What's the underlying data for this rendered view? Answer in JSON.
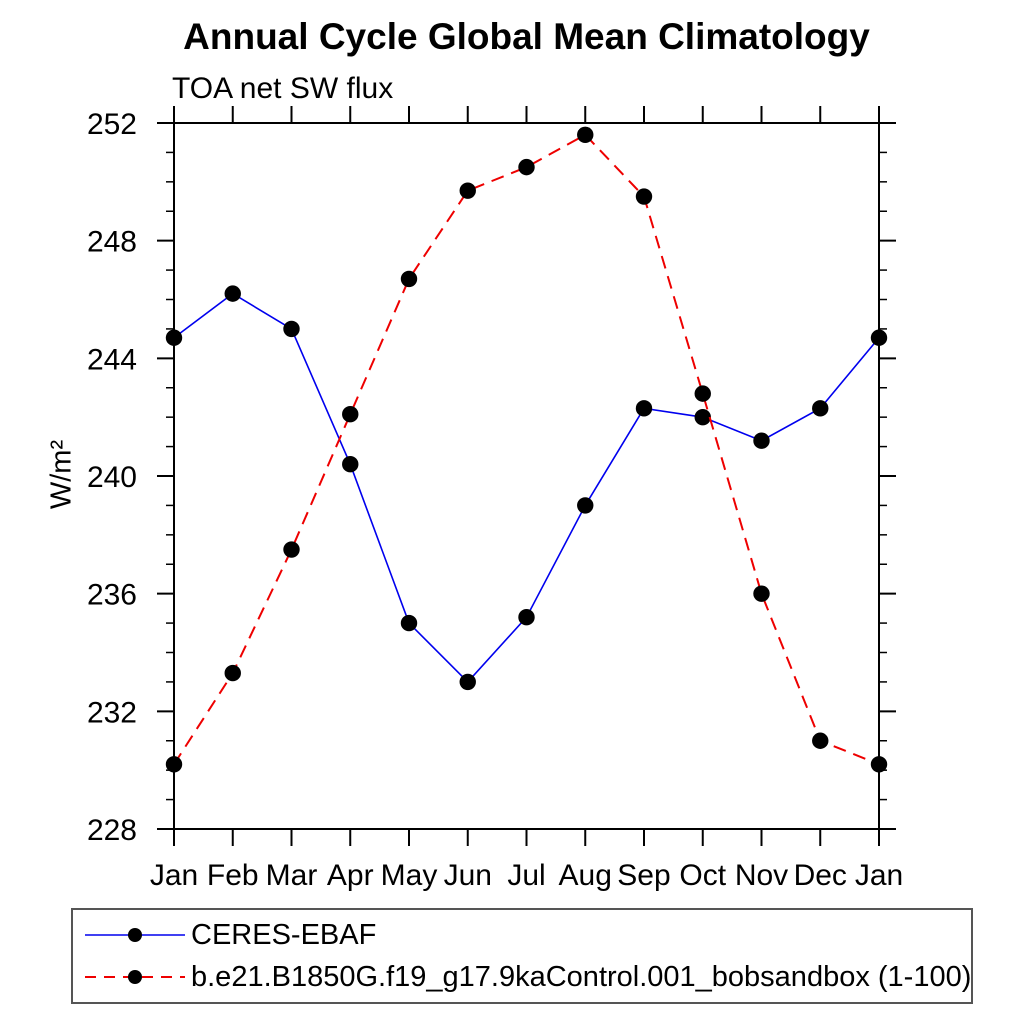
{
  "figure": {
    "background": "#ffffff",
    "axis_color": "#000000",
    "text_color": "#000000"
  },
  "chart_data": {
    "type": "line",
    "title": "Annual Cycle Global Mean Climatology",
    "subtitle": "TOA net SW flux",
    "xlabel": "",
    "ylabel": "W/m²",
    "categories": [
      "Jan",
      "Feb",
      "Mar",
      "Apr",
      "May",
      "Jun",
      "Jul",
      "Aug",
      "Sep",
      "Oct",
      "Nov",
      "Dec",
      "Jan"
    ],
    "ylim": [
      228,
      252
    ],
    "ytick_labels": [
      228,
      232,
      236,
      240,
      244,
      248,
      252
    ],
    "ytick_minor_step": 1,
    "grid": false,
    "legend_position": "bottom-left-boxed",
    "series": [
      {
        "name": "CERES-EBAF",
        "line_color": "#0000ee",
        "line_style": "solid",
        "line_width": 1.6,
        "marker": "filled-circle",
        "marker_color": "#000000",
        "values": [
          244.7,
          246.2,
          245.0,
          240.4,
          235.0,
          233.0,
          235.2,
          239.0,
          242.3,
          242.0,
          241.2,
          242.3,
          244.7
        ]
      },
      {
        "name": "b.e21.B1850G.f19_g17.9kaControl.001_bobsandbox (1-100)",
        "line_color": "#ee0000",
        "line_style": "dashed",
        "line_width": 2,
        "marker": "filled-circle",
        "marker_color": "#000000",
        "values": [
          230.2,
          233.3,
          237.5,
          242.1,
          246.7,
          249.7,
          250.5,
          251.6,
          249.5,
          242.8,
          236.0,
          231.0,
          230.2
        ]
      }
    ]
  }
}
